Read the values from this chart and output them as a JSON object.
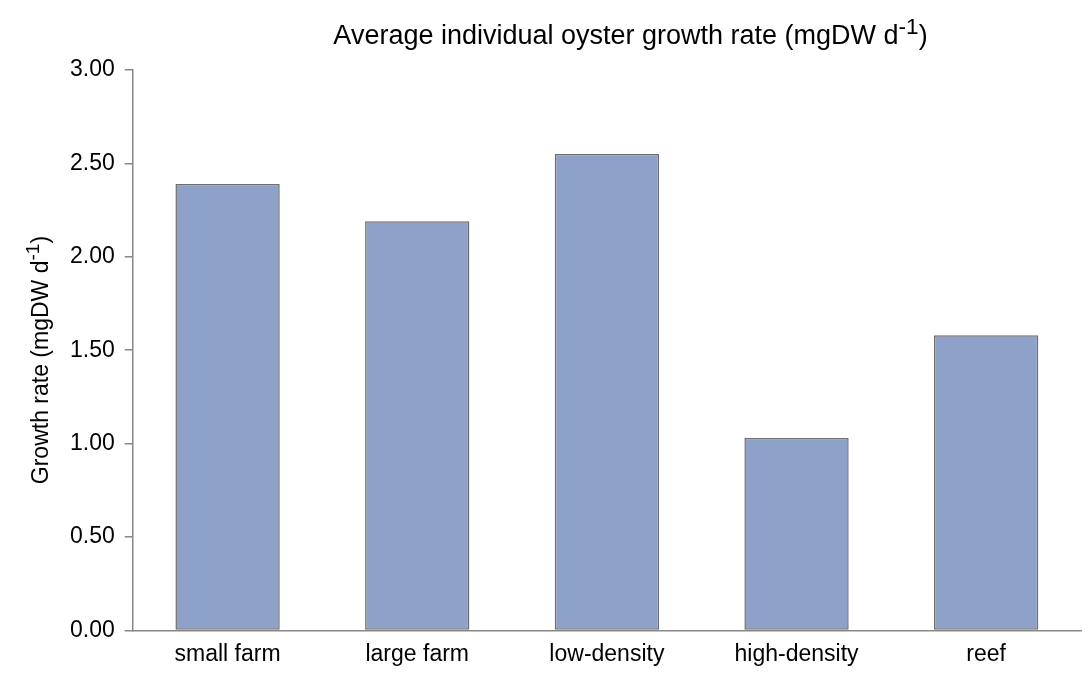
{
  "chart_data": {
    "type": "bar",
    "title": "Average individual oyster growth rate (mgDW d$^{-1}$)",
    "ylabel": "Growth rate (mgDW d$^{-1}$)",
    "categories": [
      "small farm",
      "large farm",
      "low-density",
      "high-density",
      "reef"
    ],
    "values": [
      2.39,
      2.19,
      2.55,
      1.03,
      1.58
    ],
    "color": "#8ea1c9",
    "ylim": [
      0,
      3
    ],
    "yticks": [
      {
        "value": 0,
        "label": "0.00"
      },
      {
        "value": 0.5,
        "label": "0.50"
      },
      {
        "value": 1,
        "label": "1.00"
      },
      {
        "value": 1.5,
        "label": "1.50"
      },
      {
        "value": 2,
        "label": "2.00"
      },
      {
        "value": 2.5,
        "label": "2.50"
      },
      {
        "value": 3,
        "label": "3.00"
      }
    ],
    "grid": false,
    "legend": false
  }
}
